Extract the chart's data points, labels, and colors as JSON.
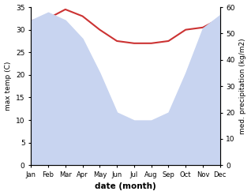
{
  "months": [
    "Jan",
    "Feb",
    "Mar",
    "Apr",
    "May",
    "Jun",
    "Jul",
    "Aug",
    "Sep",
    "Oct",
    "Nov",
    "Dec"
  ],
  "max_temp": [
    32.0,
    32.5,
    34.5,
    33.0,
    30.0,
    27.5,
    27.0,
    27.0,
    27.5,
    30.0,
    30.5,
    32.5
  ],
  "precipitation": [
    55.0,
    58.0,
    55.0,
    48.0,
    35.0,
    20.0,
    17.0,
    17.0,
    20.0,
    35.0,
    52.0,
    57.0
  ],
  "temp_color": "#cc3333",
  "precip_fill_color": "#c8d4f0",
  "temp_ylim": [
    0,
    35
  ],
  "precip_ylim": [
    0,
    60
  ],
  "temp_yticks": [
    0,
    5,
    10,
    15,
    20,
    25,
    30,
    35
  ],
  "precip_yticks": [
    0,
    10,
    20,
    30,
    40,
    50,
    60
  ],
  "xlabel": "date (month)",
  "ylabel_left": "max temp (C)",
  "ylabel_right": "med. precipitation (kg/m2)",
  "background_color": "#ffffff"
}
